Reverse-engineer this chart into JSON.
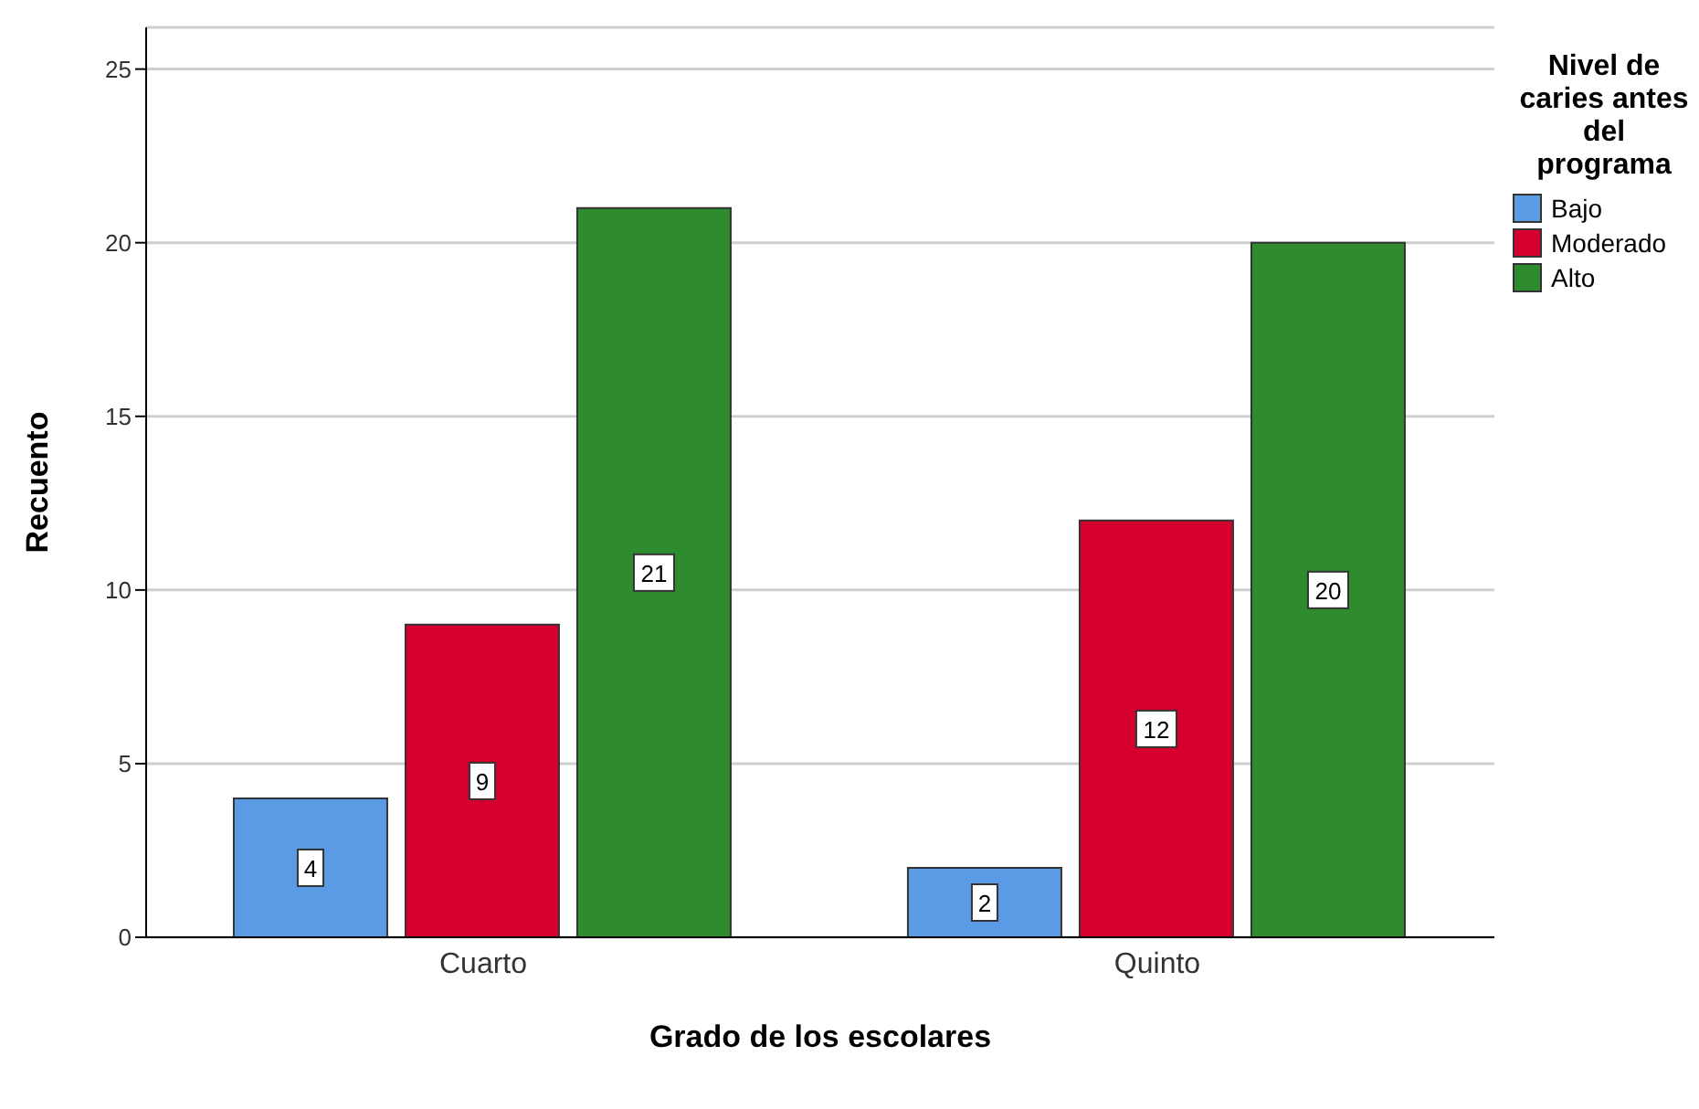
{
  "chart_data": {
    "type": "bar",
    "xlabel": "Grado de los escolares",
    "ylabel": "Recuento",
    "legend_title": "Nivel de caries antes del programa",
    "categories": [
      "Cuarto",
      "Quinto"
    ],
    "series": [
      {
        "name": "Bajo",
        "color": "#5b9be6",
        "values": [
          4,
          2
        ]
      },
      {
        "name": "Moderado",
        "color": "#d6002f",
        "values": [
          9,
          12
        ]
      },
      {
        "name": "Alto",
        "color": "#2e8b2e",
        "values": [
          21,
          20
        ]
      }
    ],
    "ylim": [
      0,
      26.2
    ],
    "yticks": [
      0,
      5,
      10,
      15,
      20,
      25
    ],
    "grid": "y",
    "legend": "right",
    "data_labels": true
  }
}
